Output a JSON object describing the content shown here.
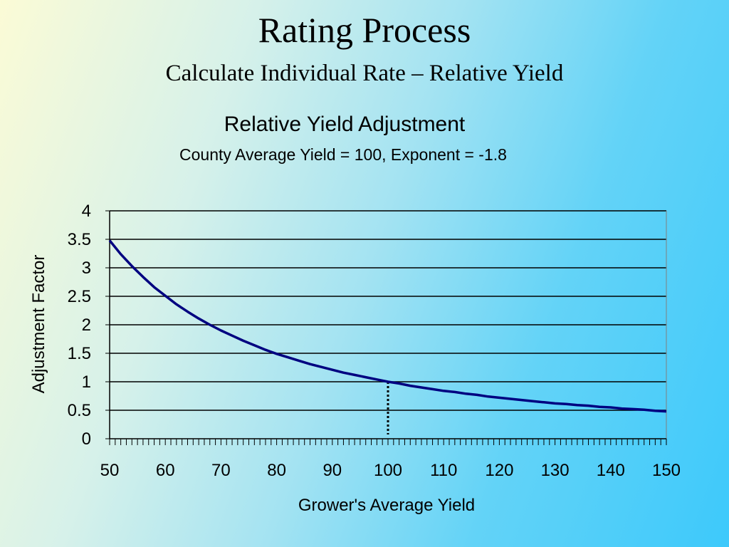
{
  "slide": {
    "title": "Rating Process",
    "subtitle": "Calculate Individual Rate – Relative Yield"
  },
  "chart_data": {
    "type": "line",
    "title": "Relative Yield Adjustment",
    "subtitle": "County Average Yield = 100, Exponent = -1.8",
    "xlabel": "Grower's Average Yield",
    "ylabel": "Adjustment Factor",
    "xlim": [
      50,
      150
    ],
    "ylim": [
      0,
      4
    ],
    "x_ticks": [
      "50",
      "60",
      "70",
      "80",
      "90",
      "100",
      "110",
      "120",
      "130",
      "140",
      "150"
    ],
    "y_ticks": [
      "0",
      "0.5",
      "1",
      "1.5",
      "2",
      "2.5",
      "3",
      "3.5",
      "4"
    ],
    "grid": "horizontal",
    "series": [
      {
        "color": "#000080",
        "x": [
          50,
          52,
          54,
          56,
          58,
          60,
          62,
          64,
          66,
          68,
          70,
          72,
          74,
          76,
          78,
          80,
          82,
          84,
          86,
          88,
          90,
          92,
          94,
          96,
          98,
          100,
          102,
          104,
          106,
          108,
          110,
          112,
          114,
          116,
          118,
          120,
          122,
          124,
          126,
          128,
          130,
          132,
          134,
          136,
          138,
          140,
          142,
          144,
          146,
          148,
          150
        ],
        "y": [
          3.48,
          3.24,
          3.03,
          2.84,
          2.66,
          2.51,
          2.36,
          2.23,
          2.11,
          2.0,
          1.9,
          1.81,
          1.72,
          1.64,
          1.56,
          1.49,
          1.43,
          1.37,
          1.31,
          1.26,
          1.21,
          1.16,
          1.12,
          1.08,
          1.04,
          1.0,
          0.97,
          0.93,
          0.9,
          0.87,
          0.84,
          0.82,
          0.79,
          0.77,
          0.74,
          0.72,
          0.7,
          0.68,
          0.66,
          0.64,
          0.62,
          0.61,
          0.59,
          0.58,
          0.56,
          0.55,
          0.53,
          0.52,
          0.51,
          0.49,
          0.48
        ]
      }
    ],
    "reference_line": {
      "x": 100,
      "y": 1.0,
      "style": "dotted"
    }
  }
}
